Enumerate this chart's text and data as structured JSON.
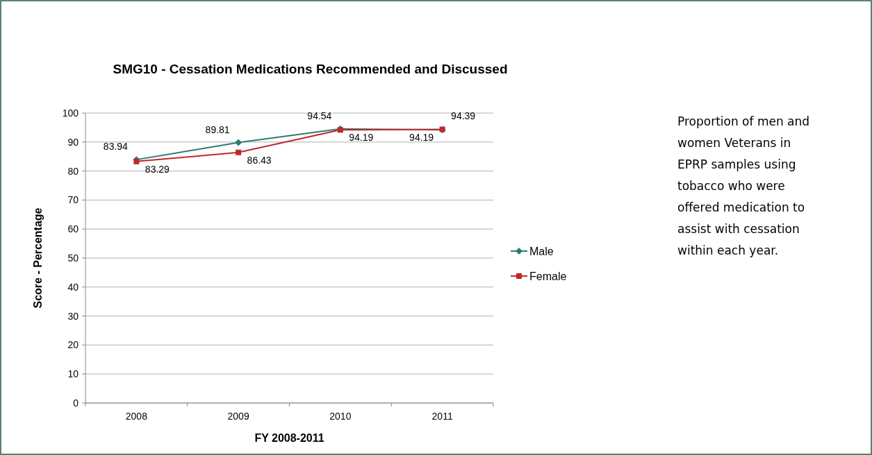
{
  "chart_data": {
    "type": "line",
    "title": "SMG10 - Cessation Medications Recommended and Discussed",
    "xlabel": "FY 2008-2011",
    "ylabel": "Score - Percentage",
    "categories": [
      "2008",
      "2009",
      "2010",
      "2011"
    ],
    "series": [
      {
        "name": "Male",
        "color": "#2e7b74",
        "marker": "diamond",
        "values": [
          83.94,
          89.81,
          94.54,
          94.19
        ]
      },
      {
        "name": "Female",
        "color": "#c0282a",
        "marker": "square",
        "values": [
          83.29,
          86.43,
          94.19,
          94.39
        ]
      }
    ],
    "ylim": [
      0,
      100
    ],
    "yticks": [
      0,
      10,
      20,
      30,
      40,
      50,
      60,
      70,
      80,
      90,
      100
    ],
    "grid": "y",
    "legend": "right",
    "data_labels": true,
    "annotations": [
      "Proportion of men and women Veterans in EPRP samples using tobacco who were offered medication to assist with cessation within each year."
    ]
  }
}
